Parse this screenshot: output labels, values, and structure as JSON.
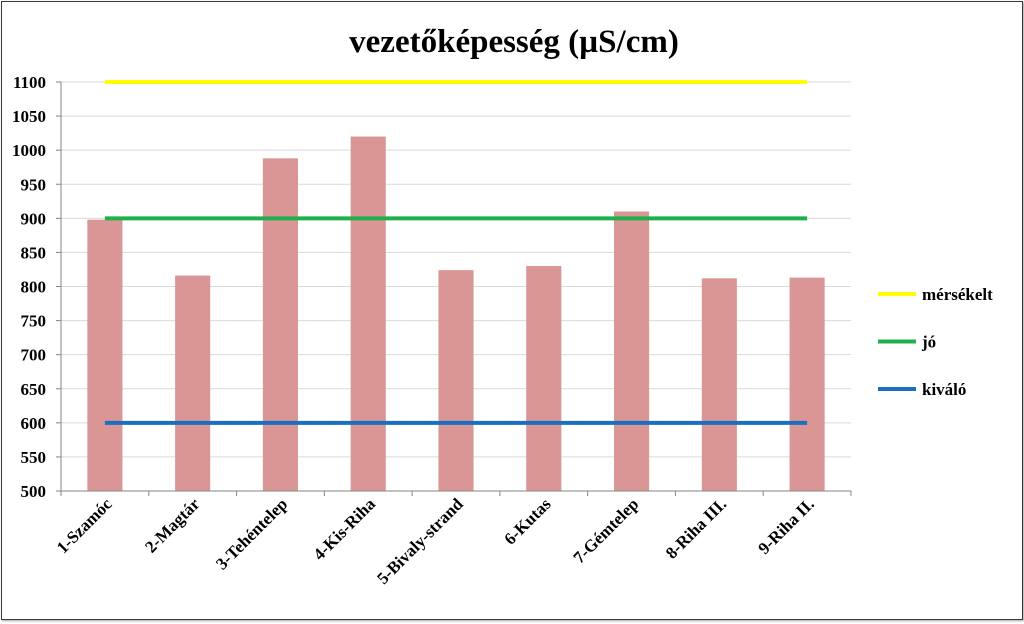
{
  "chart_data": {
    "type": "bar",
    "title": "vezetőképesség (µS/cm)",
    "categories": [
      "1-Szamóc",
      "2-Magtár",
      "3-Tehéntelep",
      "4-Kis-Riha",
      "5-Bivaly-strand",
      "6-Kutas",
      "7-Gémtelep",
      "8-Riha III.",
      "9-Riha II."
    ],
    "series": [
      {
        "values": [
          898,
          816,
          988,
          1020,
          824,
          830,
          910,
          812,
          813
        ],
        "color": "#d99694"
      }
    ],
    "reference_lines": [
      {
        "name": "mérsékelt",
        "value": 1100,
        "color": "#ffff00"
      },
      {
        "name": "jó",
        "value": 900,
        "color": "#1fb04c"
      },
      {
        "name": "kiváló",
        "value": 600,
        "color": "#1a6fbf"
      }
    ],
    "ylim": [
      500,
      1100
    ],
    "yticks": [
      500,
      550,
      600,
      650,
      700,
      750,
      800,
      850,
      900,
      950,
      1000,
      1050,
      1100
    ],
    "grid": true,
    "legend": "right"
  }
}
